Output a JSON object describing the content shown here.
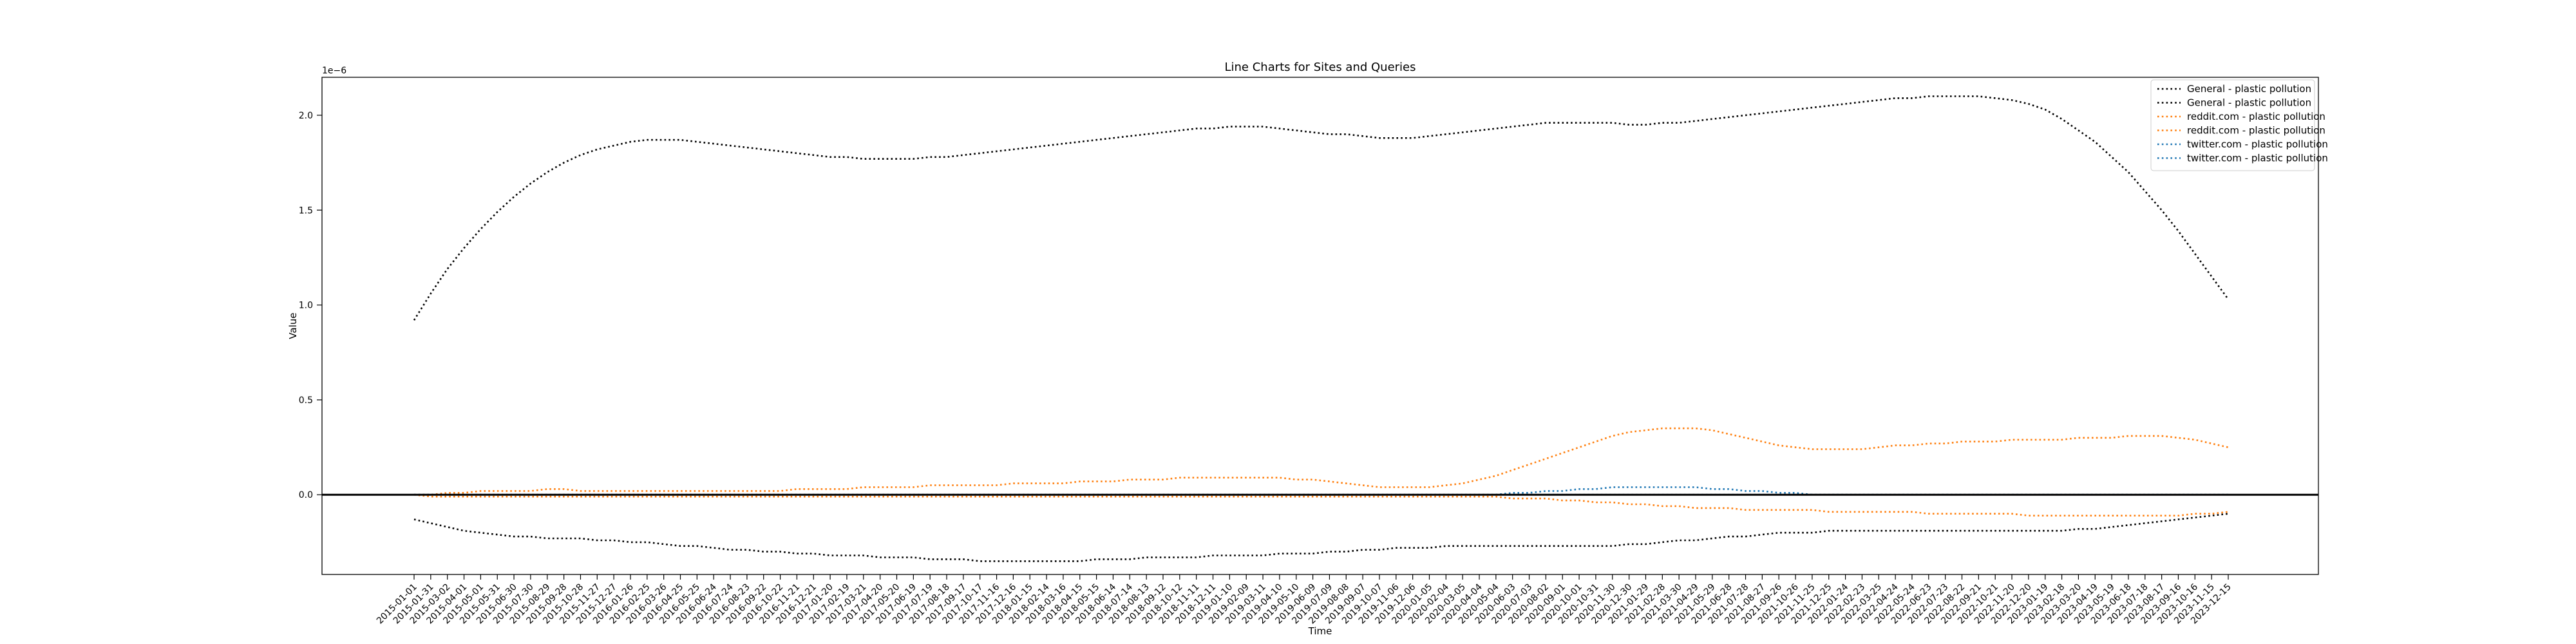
{
  "chart_data": {
    "type": "line",
    "title": "Line Charts for Sites and Queries",
    "xlabel": "Time",
    "ylabel": "Value",
    "y_offset_text": "1e−6",
    "ylim": [
      -4.2e-07,
      2.2e-06
    ],
    "yticks": [
      0.0,
      5e-07,
      1e-06,
      1.5e-06,
      2e-06
    ],
    "ytick_labels": [
      "0.0",
      "0.5",
      "1.0",
      "1.5",
      "2.0"
    ],
    "grid": false,
    "legend_position": "top-right",
    "zero_line": true,
    "x": [
      "2015-01-01",
      "2015-01-31",
      "2015-03-02",
      "2015-04-01",
      "2015-05-01",
      "2015-05-31",
      "2015-06-30",
      "2015-07-30",
      "2015-08-29",
      "2015-09-28",
      "2015-10-28",
      "2015-11-27",
      "2015-12-27",
      "2016-01-26",
      "2016-02-25",
      "2016-03-26",
      "2016-04-25",
      "2016-05-25",
      "2016-06-24",
      "2016-07-24",
      "2016-08-23",
      "2016-09-22",
      "2016-10-22",
      "2016-11-21",
      "2016-12-21",
      "2017-01-20",
      "2017-02-19",
      "2017-03-21",
      "2017-04-20",
      "2017-05-20",
      "2017-06-19",
      "2017-07-19",
      "2017-08-18",
      "2017-09-17",
      "2017-10-17",
      "2017-11-16",
      "2017-12-16",
      "2018-01-15",
      "2018-02-14",
      "2018-03-16",
      "2018-04-15",
      "2018-05-15",
      "2018-06-14",
      "2018-07-14",
      "2018-08-13",
      "2018-09-12",
      "2018-10-12",
      "2018-11-11",
      "2018-12-11",
      "2019-01-10",
      "2019-02-09",
      "2019-03-11",
      "2019-04-10",
      "2019-05-10",
      "2019-06-09",
      "2019-07-09",
      "2019-08-08",
      "2019-09-07",
      "2019-10-07",
      "2019-11-06",
      "2019-12-06",
      "2020-01-05",
      "2020-02-04",
      "2020-03-05",
      "2020-04-04",
      "2020-05-04",
      "2020-06-03",
      "2020-07-03",
      "2020-08-02",
      "2020-09-01",
      "2020-10-01",
      "2020-10-31",
      "2020-11-30",
      "2020-12-30",
      "2021-01-29",
      "2021-02-28",
      "2021-03-30",
      "2021-04-29",
      "2021-05-29",
      "2021-06-28",
      "2021-07-28",
      "2021-08-27",
      "2021-09-26",
      "2021-10-26",
      "2021-11-25",
      "2021-12-25",
      "2022-01-24",
      "2022-02-23",
      "2022-03-25",
      "2022-04-24",
      "2022-05-24",
      "2022-06-23",
      "2022-07-23",
      "2022-08-22",
      "2022-09-21",
      "2022-10-21",
      "2022-11-20",
      "2022-12-20",
      "2023-01-19",
      "2023-02-18",
      "2023-03-20",
      "2023-04-19",
      "2023-05-19",
      "2023-06-18",
      "2023-07-18",
      "2023-08-17",
      "2023-09-16",
      "2023-10-16",
      "2023-11-15",
      "2023-12-15"
    ],
    "series": [
      {
        "name": "General - plastic pollution",
        "color": "#000000",
        "style": "dotted",
        "values": [
          9.2e-07,
          1.06e-06,
          1.19e-06,
          1.3e-06,
          1.4e-06,
          1.49e-06,
          1.57e-06,
          1.64e-06,
          1.7e-06,
          1.75e-06,
          1.79e-06,
          1.82e-06,
          1.84e-06,
          1.86e-06,
          1.87e-06,
          1.87e-06,
          1.87e-06,
          1.86e-06,
          1.85e-06,
          1.84e-06,
          1.83e-06,
          1.82e-06,
          1.81e-06,
          1.8e-06,
          1.79e-06,
          1.78e-06,
          1.78e-06,
          1.77e-06,
          1.77e-06,
          1.77e-06,
          1.77e-06,
          1.78e-06,
          1.78e-06,
          1.79e-06,
          1.8e-06,
          1.81e-06,
          1.82e-06,
          1.83e-06,
          1.84e-06,
          1.85e-06,
          1.86e-06,
          1.87e-06,
          1.88e-06,
          1.89e-06,
          1.9e-06,
          1.91e-06,
          1.92e-06,
          1.93e-06,
          1.93e-06,
          1.94e-06,
          1.94e-06,
          1.94e-06,
          1.93e-06,
          1.92e-06,
          1.91e-06,
          1.9e-06,
          1.9e-06,
          1.89e-06,
          1.88e-06,
          1.88e-06,
          1.88e-06,
          1.89e-06,
          1.9e-06,
          1.91e-06,
          1.92e-06,
          1.93e-06,
          1.94e-06,
          1.95e-06,
          1.96e-06,
          1.96e-06,
          1.96e-06,
          1.96e-06,
          1.96e-06,
          1.95e-06,
          1.95e-06,
          1.96e-06,
          1.96e-06,
          1.97e-06,
          1.98e-06,
          1.99e-06,
          2e-06,
          2.01e-06,
          2.02e-06,
          2.03e-06,
          2.04e-06,
          2.05e-06,
          2.06e-06,
          2.07e-06,
          2.08e-06,
          2.09e-06,
          2.09e-06,
          2.1e-06,
          2.1e-06,
          2.1e-06,
          2.1e-06,
          2.09e-06,
          2.08e-06,
          2.06e-06,
          2.03e-06,
          1.98e-06,
          1.92e-06,
          1.86e-06,
          1.78e-06,
          1.7e-06,
          1.6e-06,
          1.5e-06,
          1.39e-06,
          1.27e-06,
          1.15e-06,
          1.03e-06
        ]
      },
      {
        "name": "General - plastic pollution",
        "color": "#000000",
        "style": "dotted",
        "values": [
          -1.3e-07,
          -1.5e-07,
          -1.7e-07,
          -1.9e-07,
          -2e-07,
          -2.1e-07,
          -2.2e-07,
          -2.2e-07,
          -2.3e-07,
          -2.3e-07,
          -2.3e-07,
          -2.4e-07,
          -2.4e-07,
          -2.5e-07,
          -2.5e-07,
          -2.6e-07,
          -2.7e-07,
          -2.7e-07,
          -2.8e-07,
          -2.9e-07,
          -2.9e-07,
          -3e-07,
          -3e-07,
          -3.1e-07,
          -3.1e-07,
          -3.2e-07,
          -3.2e-07,
          -3.2e-07,
          -3.3e-07,
          -3.3e-07,
          -3.3e-07,
          -3.4e-07,
          -3.4e-07,
          -3.4e-07,
          -3.5e-07,
          -3.5e-07,
          -3.5e-07,
          -3.5e-07,
          -3.5e-07,
          -3.5e-07,
          -3.5e-07,
          -3.4e-07,
          -3.4e-07,
          -3.4e-07,
          -3.3e-07,
          -3.3e-07,
          -3.3e-07,
          -3.3e-07,
          -3.2e-07,
          -3.2e-07,
          -3.2e-07,
          -3.2e-07,
          -3.1e-07,
          -3.1e-07,
          -3.1e-07,
          -3e-07,
          -3e-07,
          -2.9e-07,
          -2.9e-07,
          -2.8e-07,
          -2.8e-07,
          -2.8e-07,
          -2.7e-07,
          -2.7e-07,
          -2.7e-07,
          -2.7e-07,
          -2.7e-07,
          -2.7e-07,
          -2.7e-07,
          -2.7e-07,
          -2.7e-07,
          -2.7e-07,
          -2.7e-07,
          -2.6e-07,
          -2.6e-07,
          -2.5e-07,
          -2.4e-07,
          -2.4e-07,
          -2.3e-07,
          -2.2e-07,
          -2.2e-07,
          -2.1e-07,
          -2e-07,
          -2e-07,
          -2e-07,
          -1.9e-07,
          -1.9e-07,
          -1.9e-07,
          -1.9e-07,
          -1.9e-07,
          -1.9e-07,
          -1.9e-07,
          -1.9e-07,
          -1.9e-07,
          -1.9e-07,
          -1.9e-07,
          -1.9e-07,
          -1.9e-07,
          -1.9e-07,
          -1.9e-07,
          -1.8e-07,
          -1.8e-07,
          -1.7e-07,
          -1.6e-07,
          -1.5e-07,
          -1.4e-07,
          -1.3e-07,
          -1.2e-07,
          -1.1e-07,
          -1e-07
        ]
      },
      {
        "name": "reddit.com - plastic pollution",
        "color": "#ff7f0e",
        "style": "dotted",
        "values": [
          0.0,
          0.0,
          1e-08,
          1e-08,
          2e-08,
          2e-08,
          2e-08,
          2e-08,
          3e-08,
          3e-08,
          2e-08,
          2e-08,
          2e-08,
          2e-08,
          2e-08,
          2e-08,
          2e-08,
          2e-08,
          2e-08,
          2e-08,
          2e-08,
          2e-08,
          2e-08,
          3e-08,
          3e-08,
          3e-08,
          3e-08,
          4e-08,
          4e-08,
          4e-08,
          4e-08,
          5e-08,
          5e-08,
          5e-08,
          5e-08,
          5e-08,
          6e-08,
          6e-08,
          6e-08,
          6e-08,
          7e-08,
          7e-08,
          7e-08,
          8e-08,
          8e-08,
          8e-08,
          9e-08,
          9e-08,
          9e-08,
          9e-08,
          9e-08,
          9e-08,
          9e-08,
          8e-08,
          8e-08,
          7e-08,
          6e-08,
          5e-08,
          4e-08,
          4e-08,
          4e-08,
          4e-08,
          5e-08,
          6e-08,
          8e-08,
          1e-07,
          1.3e-07,
          1.6e-07,
          1.9e-07,
          2.2e-07,
          2.5e-07,
          2.8e-07,
          3.1e-07,
          3.3e-07,
          3.4e-07,
          3.5e-07,
          3.5e-07,
          3.5e-07,
          3.4e-07,
          3.2e-07,
          3e-07,
          2.8e-07,
          2.6e-07,
          2.5e-07,
          2.4e-07,
          2.4e-07,
          2.4e-07,
          2.4e-07,
          2.5e-07,
          2.6e-07,
          2.6e-07,
          2.7e-07,
          2.7e-07,
          2.8e-07,
          2.8e-07,
          2.8e-07,
          2.9e-07,
          2.9e-07,
          2.9e-07,
          2.9e-07,
          3e-07,
          3e-07,
          3e-07,
          3.1e-07,
          3.1e-07,
          3.1e-07,
          3e-07,
          2.9e-07,
          2.7e-07,
          2.5e-07
        ]
      },
      {
        "name": "reddit.com - plastic pollution",
        "color": "#ff7f0e",
        "style": "dotted",
        "values": [
          0.0,
          -1e-08,
          -1e-08,
          -1e-08,
          -1e-08,
          -1e-08,
          -1e-08,
          -1e-08,
          -1e-08,
          -1e-08,
          -1e-08,
          -1e-08,
          -1e-08,
          -1e-08,
          -1e-08,
          -1e-08,
          -1e-08,
          -1e-08,
          -1e-08,
          -1e-08,
          -1e-08,
          -1e-08,
          -1e-08,
          -1e-08,
          -1e-08,
          -1e-08,
          -1e-08,
          -1e-08,
          -1e-08,
          -1e-08,
          -1e-08,
          -1e-08,
          -1e-08,
          -1e-08,
          -1e-08,
          -1e-08,
          -1e-08,
          -1e-08,
          -1e-08,
          -1e-08,
          -1e-08,
          -1e-08,
          -1e-08,
          -1e-08,
          -1e-08,
          -1e-08,
          -1e-08,
          -1e-08,
          -1e-08,
          -1e-08,
          -1e-08,
          -1e-08,
          -1e-08,
          -1e-08,
          -1e-08,
          -1e-08,
          -1e-08,
          -1e-08,
          -1e-08,
          -1e-08,
          -1e-08,
          -1e-08,
          -1e-08,
          -1e-08,
          -1e-08,
          -1e-08,
          -2e-08,
          -2e-08,
          -2e-08,
          -3e-08,
          -3e-08,
          -4e-08,
          -4e-08,
          -5e-08,
          -5e-08,
          -6e-08,
          -6e-08,
          -7e-08,
          -7e-08,
          -7e-08,
          -8e-08,
          -8e-08,
          -8e-08,
          -8e-08,
          -8e-08,
          -9e-08,
          -9e-08,
          -9e-08,
          -9e-08,
          -9e-08,
          -9e-08,
          -1e-07,
          -1e-07,
          -1e-07,
          -1e-07,
          -1e-07,
          -1e-07,
          -1.1e-07,
          -1.1e-07,
          -1.1e-07,
          -1.1e-07,
          -1.1e-07,
          -1.1e-07,
          -1.1e-07,
          -1.1e-07,
          -1.1e-07,
          -1.1e-07,
          -1e-07,
          -1e-07,
          -9e-08
        ]
      },
      {
        "name": "twitter.com - plastic pollution",
        "color": "#1f77b4",
        "style": "dotted",
        "values": [
          0.0,
          0.0,
          0.0,
          0.0,
          0.0,
          0.0,
          0.0,
          0.0,
          0.0,
          0.0,
          0.0,
          0.0,
          0.0,
          0.0,
          0.0,
          0.0,
          0.0,
          0.0,
          0.0,
          0.0,
          0.0,
          0.0,
          0.0,
          0.0,
          0.0,
          0.0,
          0.0,
          0.0,
          0.0,
          0.0,
          0.0,
          0.0,
          0.0,
          0.0,
          0.0,
          0.0,
          0.0,
          0.0,
          0.0,
          0.0,
          0.0,
          0.0,
          0.0,
          0.0,
          0.0,
          0.0,
          0.0,
          0.0,
          0.0,
          0.0,
          0.0,
          0.0,
          0.0,
          0.0,
          0.0,
          0.0,
          0.0,
          0.0,
          0.0,
          0.0,
          0.0,
          0.0,
          0.0,
          0.0,
          0.0,
          0.0,
          1e-08,
          1e-08,
          2e-08,
          2e-08,
          3e-08,
          3e-08,
          4e-08,
          4e-08,
          4e-08,
          4e-08,
          4e-08,
          4e-08,
          3e-08,
          3e-08,
          2e-08,
          2e-08,
          1e-08,
          1e-08,
          0.0,
          0.0,
          0.0,
          0.0,
          0.0,
          0.0,
          0.0,
          0.0,
          0.0,
          0.0,
          0.0,
          0.0,
          0.0,
          0.0,
          0.0,
          0.0,
          0.0,
          0.0,
          0.0,
          0.0,
          0.0,
          0.0,
          0.0,
          0.0,
          0.0,
          0.0
        ]
      },
      {
        "name": "twitter.com - plastic pollution",
        "color": "#1f77b4",
        "style": "dotted",
        "values": [
          0.0,
          0.0,
          0.0,
          0.0,
          0.0,
          0.0,
          0.0,
          0.0,
          0.0,
          0.0,
          0.0,
          0.0,
          0.0,
          0.0,
          0.0,
          0.0,
          0.0,
          0.0,
          0.0,
          0.0,
          0.0,
          0.0,
          0.0,
          0.0,
          0.0,
          0.0,
          0.0,
          0.0,
          0.0,
          0.0,
          0.0,
          0.0,
          0.0,
          0.0,
          0.0,
          0.0,
          0.0,
          0.0,
          0.0,
          0.0,
          0.0,
          0.0,
          0.0,
          0.0,
          0.0,
          0.0,
          0.0,
          0.0,
          0.0,
          0.0,
          0.0,
          0.0,
          0.0,
          0.0,
          0.0,
          0.0,
          0.0,
          0.0,
          0.0,
          0.0,
          0.0,
          0.0,
          0.0,
          0.0,
          0.0,
          0.0,
          0.0,
          0.0,
          0.0,
          0.0,
          0.0,
          0.0,
          0.0,
          0.0,
          0.0,
          0.0,
          0.0,
          0.0,
          0.0,
          0.0,
          0.0,
          0.0,
          0.0,
          0.0,
          0.0,
          0.0,
          0.0,
          0.0,
          0.0,
          0.0,
          0.0,
          0.0,
          0.0,
          0.0,
          0.0,
          0.0,
          0.0,
          0.0,
          0.0,
          0.0,
          0.0,
          0.0,
          0.0,
          0.0,
          0.0,
          0.0,
          0.0,
          0.0,
          0.0,
          0.0
        ]
      }
    ]
  }
}
